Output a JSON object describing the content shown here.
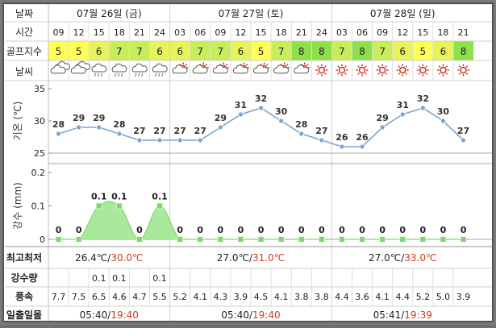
{
  "header": {
    "date_label": "날짜",
    "dates": [
      "07월 26일 (금)",
      "07월 27일 (토)",
      "07월 28일 (일)"
    ],
    "time_label": "시간",
    "times": [
      "09",
      "12",
      "15",
      "18",
      "21",
      "24",
      "03",
      "06",
      "09",
      "12",
      "15",
      "18",
      "21",
      "24",
      "03",
      "06",
      "09",
      "12",
      "15",
      "18",
      "21"
    ],
    "golf_label": "골프지수",
    "golf": [
      5,
      5,
      6,
      7,
      7,
      6,
      6,
      7,
      7,
      6,
      5,
      7,
      8,
      8,
      7,
      8,
      7,
      6,
      5,
      6,
      8
    ],
    "weather_label": "날씨",
    "weather": [
      "cloudy",
      "cloudy",
      "rain",
      "rain",
      "rain",
      "rain",
      "partly-cloudy",
      "partly-cloudy",
      "partly-cloudy",
      "partly-cloudy",
      "partly-cloudy",
      "partly-cloudy",
      "partly-cloudy",
      "sunny",
      "sunny",
      "sunny",
      "sunny",
      "sunny",
      "sunny",
      "sunny",
      "sunny"
    ]
  },
  "colors": {
    "golf_5": "#ffff55",
    "golf_6": "#e6f45a",
    "golf_7": "#c8ec5a",
    "golf_8": "#8ee04a",
    "temp_line": "#7aa4d2",
    "rain_fill": "#9be58a",
    "rain_point": "#7ed96a",
    "label_text": "#333333",
    "sun": "#cc2a1a",
    "cloud": "#555555"
  },
  "chart_data": [
    {
      "type": "line",
      "ylabel": "기온 (℃)",
      "ylim": [
        25,
        35
      ],
      "yticks": [
        25,
        30,
        35
      ],
      "x": [
        "09",
        "12",
        "15",
        "18",
        "21",
        "24",
        "03",
        "06",
        "09",
        "12",
        "15",
        "18",
        "21",
        "24",
        "03",
        "06",
        "09",
        "12",
        "15",
        "18",
        "21"
      ],
      "values": [
        28,
        29,
        29,
        28,
        27,
        27,
        27,
        27,
        29,
        31,
        32,
        30,
        28,
        27,
        26,
        26,
        29,
        31,
        32,
        30,
        27
      ]
    },
    {
      "type": "area",
      "ylabel": "강수 (mm)",
      "ylim": [
        0,
        0.2
      ],
      "yticks": [
        "0",
        "0.1",
        "0.2"
      ],
      "x": [
        "09",
        "12",
        "15",
        "18",
        "21",
        "24",
        "03",
        "06",
        "09",
        "12",
        "15",
        "18",
        "21",
        "24",
        "03",
        "06",
        "09",
        "12",
        "15",
        "18",
        "21"
      ],
      "values": [
        0,
        0,
        0.1,
        0.1,
        0,
        0.1,
        0,
        0,
        0,
        0,
        0,
        0,
        0,
        0,
        0,
        0,
        0,
        0,
        0,
        0,
        0
      ],
      "value_labels": [
        "0",
        "0",
        "0.1",
        "0.1",
        "0",
        "0.1",
        "0",
        "0",
        "0",
        "0",
        "0",
        "0",
        "0",
        "0",
        "0",
        "0",
        "0",
        "0",
        "0",
        "0",
        "0"
      ]
    }
  ],
  "footer": {
    "minmax_label": "최고최저",
    "minmax": [
      {
        "min": "26.4℃",
        "sep": "/",
        "max": "30.0℃"
      },
      {
        "min": "27.0℃",
        "sep": "/",
        "max": "31.0℃"
      },
      {
        "min": "27.0℃",
        "sep": "/",
        "max": "33.0℃"
      }
    ],
    "rain_label": "강수량",
    "rain": [
      "",
      "",
      "0.1",
      "0.1",
      "",
      "0.1",
      "",
      "",
      "",
      "",
      "",
      "",
      "",
      "",
      "",
      "",
      "",
      "",
      "",
      "",
      ""
    ],
    "wind_label": "풍속",
    "wind": [
      "7.7",
      "7.5",
      "6.5",
      "4.6",
      "4.7",
      "5.5",
      "5.2",
      "4.1",
      "4.3",
      "3.9",
      "4.5",
      "4.1",
      "3.8",
      "3.8",
      "4.4",
      "3.6",
      "4.1",
      "4.4",
      "5.2",
      "5.0",
      "3.9"
    ],
    "sun_label": "일출일몰",
    "sun": [
      {
        "rise": "05:40",
        "sep": "/",
        "set": "19:40"
      },
      {
        "rise": "05:40",
        "sep": "/",
        "set": "19:40"
      },
      {
        "rise": "05:41",
        "sep": "/",
        "set": "19:39"
      }
    ]
  }
}
